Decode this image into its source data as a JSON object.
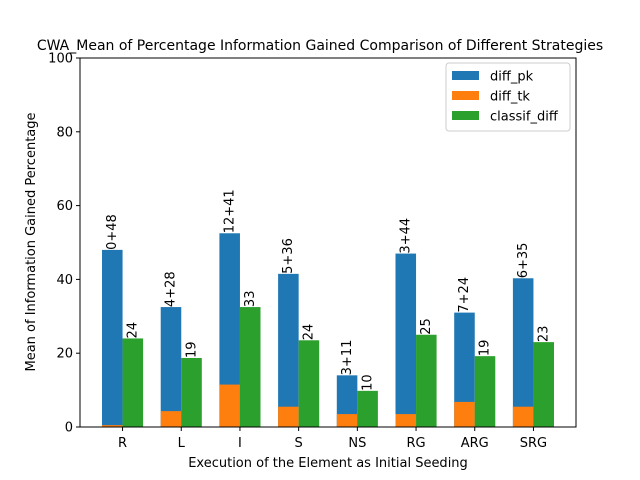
{
  "chart_data": {
    "type": "bar",
    "title": "CWA_Mean of Percentage Information Gained Comparison of Different Strategies",
    "xlabel": "Execution of the Element as Initial Seeding",
    "ylabel": "Mean of Information Gained Percentage",
    "ylim": [
      0,
      100
    ],
    "yticks": [
      0,
      20,
      40,
      60,
      80,
      100
    ],
    "categories": [
      "R",
      "L",
      "I",
      "S",
      "NS",
      "RG",
      "ARG",
      "SRG"
    ],
    "series": [
      {
        "name": "diff_pk",
        "color": "#1f77b4",
        "values": [
          48,
          32.5,
          52.5,
          41.5,
          14,
          47,
          31,
          40.3
        ]
      },
      {
        "name": "diff_tk",
        "color": "#ff7f0e",
        "values": [
          0.5,
          4.3,
          11.5,
          5.5,
          3.5,
          3.5,
          6.8,
          5.5
        ]
      },
      {
        "name": "classif_diff",
        "color": "#2ca02c",
        "values": [
          24,
          18.7,
          32.5,
          23.5,
          9.8,
          25,
          19.2,
          23
        ]
      }
    ],
    "stack_labels": [
      "0+48",
      "4+28",
      "12+41",
      "5+36",
      "3+11",
      "3+44",
      "7+24",
      "6+35"
    ],
    "classif_labels": [
      "24",
      "19",
      "33",
      "24",
      "10",
      "25",
      "19",
      "23"
    ],
    "legend_position": "top-right",
    "grid": false
  }
}
